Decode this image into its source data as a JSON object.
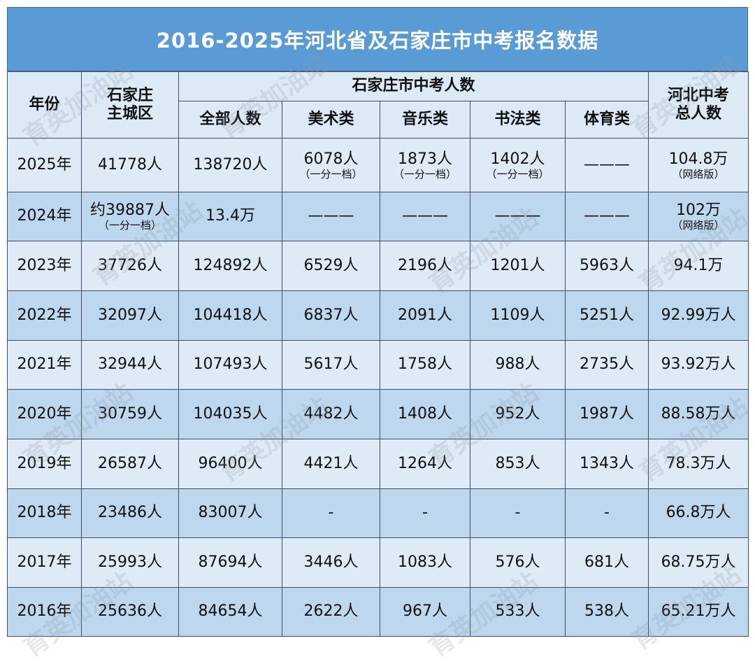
{
  "title": "2016-2025年河北省及石家庄市中考报名数据",
  "watermark": "育英加油站",
  "header": {
    "year": "年份",
    "main_district": [
      "石家庄",
      "主城区"
    ],
    "group": "石家庄市中考人数",
    "subcolumns": [
      "全部人数",
      "美术类",
      "音乐类",
      "书法类",
      "体育类"
    ],
    "hebei_total": [
      "河北中考",
      "总人数"
    ]
  },
  "table": {
    "rows": [
      [
        "2025年",
        "41778人",
        "138720人",
        {
          "text": "6078人",
          "note": "（一分一档）"
        },
        {
          "text": "1873人",
          "note": "（一分一档）"
        },
        {
          "text": "1402人",
          "note": "（一分一档）"
        },
        "———",
        {
          "text": "104.8万",
          "note": "（网络版）"
        }
      ],
      [
        "2024年",
        {
          "text": "约39887人",
          "note": "（一分一档）"
        },
        "13.4万",
        "———",
        "———",
        "———",
        "———",
        {
          "text": "102万",
          "note": "（网络版）"
        }
      ],
      [
        "2023年",
        "37726人",
        "124892人",
        "6529人",
        "2196人",
        "1201人",
        "5963人",
        "94.1万"
      ],
      [
        "2022年",
        "32097人",
        "104418人",
        "6837人",
        "2091人",
        "1109人",
        "5251人",
        "92.99万人"
      ],
      [
        "2021年",
        "32944人",
        "107493人",
        "5617人",
        "1758人",
        "988人",
        "2735人",
        "93.92万人"
      ],
      [
        "2020年",
        "30759人",
        "104035人",
        "4482人",
        "1408人",
        "952人",
        "1987人",
        "88.58万人"
      ],
      [
        "2019年",
        "26587人",
        "96400人",
        "4421人",
        "1264人",
        "853人",
        "1343人",
        "78.3万人"
      ],
      [
        "2018年",
        "23486人",
        "83007人",
        "-",
        "-",
        "-",
        "-",
        "66.8万人"
      ],
      [
        "2017年",
        "25993人",
        "87694人",
        "3446人",
        "1083人",
        "576人",
        "681人",
        "68.75万人"
      ],
      [
        "2016年",
        "25636人",
        "84654人",
        "2622人",
        "967人",
        "533人",
        "538人",
        "65.21万人"
      ]
    ]
  }
}
